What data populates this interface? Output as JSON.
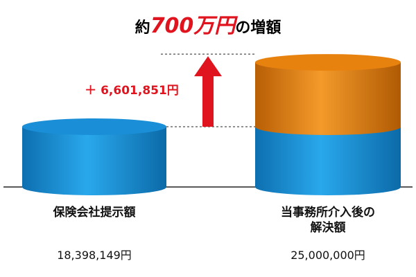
{
  "chart_data": {
    "type": "cylinder",
    "title": {
      "prefix": "約",
      "highlight": "700万円",
      "suffix": "の増額"
    },
    "annotation": "＋ 6,601,851円",
    "categories": [
      "保険会社提示額",
      "当事務所介入後の解決額"
    ],
    "values": [
      18398149,
      25000000
    ],
    "value_labels": [
      "18,398,149円",
      "25,000,000円"
    ],
    "base_color": "#1a8fd8",
    "increase_color": "#e8820f",
    "highlight_color": "#e0141e",
    "ylim": [
      12000000,
      26000000
    ]
  }
}
